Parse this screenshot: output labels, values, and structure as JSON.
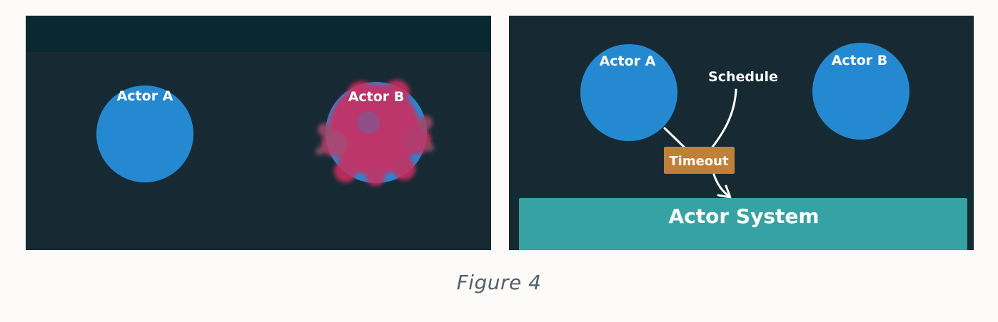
{
  "colors": {
    "page_background": "#fcfbfa",
    "panel_background": "#172a33",
    "topbar": "#0a2830",
    "actor_fill": "#2589d1",
    "explosion": "#d22a5c",
    "timeout_box": "#c0803a",
    "actor_system": "#37a2a3"
  },
  "left_panel": {
    "actor_a": "Actor A",
    "actor_b": "Actor B"
  },
  "right_panel": {
    "actor_a": "Actor A",
    "actor_b": "Actor B",
    "schedule": "Schedule",
    "timeout": "Timeout",
    "actor_system": "Actor System"
  },
  "caption": "Figure 4"
}
